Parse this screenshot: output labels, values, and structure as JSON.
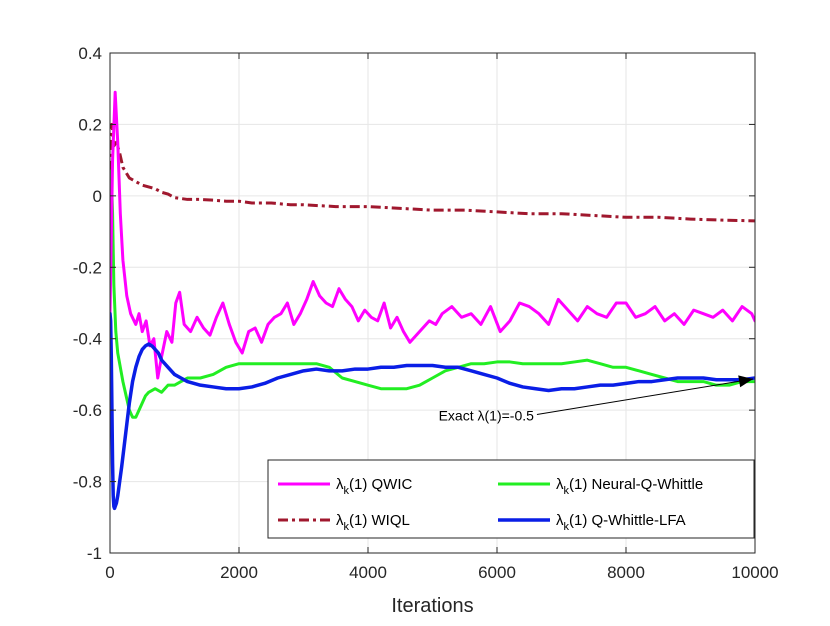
{
  "chart_data": {
    "type": "line",
    "title": "",
    "xlabel": "Iterations",
    "ylabel": "",
    "xlim": [
      0,
      10000
    ],
    "ylim": [
      -1,
      0.4
    ],
    "xticks": [
      0,
      2000,
      4000,
      6000,
      8000,
      10000
    ],
    "xtick_labels": [
      "0",
      "2000",
      "4000",
      "6000",
      "8000",
      "10000"
    ],
    "yticks": [
      -1,
      -0.8,
      -0.6,
      -0.4,
      -0.2,
      0,
      0.2,
      0.4
    ],
    "ytick_labels": [
      "-1",
      "-0.8",
      "-0.6",
      "-0.4",
      "-0.2",
      "0",
      "0.2",
      "0.4"
    ],
    "grid": true,
    "legend_position": "bottom-right",
    "series": [
      {
        "name": "QWIC",
        "legend_sub": "k",
        "color": "#ff00ff",
        "style": "solid",
        "x": [
          0,
          40,
          80,
          120,
          160,
          200,
          260,
          320,
          400,
          450,
          500,
          560,
          620,
          680,
          740,
          800,
          880,
          960,
          1020,
          1080,
          1150,
          1250,
          1350,
          1450,
          1550,
          1650,
          1750,
          1850,
          1950,
          2050,
          2150,
          2250,
          2350,
          2450,
          2550,
          2650,
          2750,
          2850,
          2950,
          3050,
          3150,
          3250,
          3350,
          3450,
          3550,
          3650,
          3750,
          3850,
          3950,
          4050,
          4150,
          4250,
          4350,
          4450,
          4550,
          4650,
          4750,
          4850,
          4950,
          5050,
          5150,
          5300,
          5450,
          5600,
          5750,
          5900,
          6050,
          6200,
          6350,
          6500,
          6650,
          6800,
          6950,
          7100,
          7250,
          7400,
          7550,
          7700,
          7850,
          8000,
          8150,
          8300,
          8450,
          8600,
          8750,
          8900,
          9050,
          9200,
          9350,
          9500,
          9650,
          9800,
          9950,
          10000
        ],
        "y": [
          -0.33,
          0.1,
          0.29,
          0.15,
          -0.05,
          -0.18,
          -0.28,
          -0.33,
          -0.36,
          -0.33,
          -0.38,
          -0.35,
          -0.42,
          -0.4,
          -0.51,
          -0.45,
          -0.38,
          -0.41,
          -0.3,
          -0.27,
          -0.36,
          -0.38,
          -0.34,
          -0.37,
          -0.39,
          -0.34,
          -0.3,
          -0.36,
          -0.41,
          -0.44,
          -0.38,
          -0.37,
          -0.41,
          -0.36,
          -0.34,
          -0.33,
          -0.3,
          -0.36,
          -0.33,
          -0.29,
          -0.24,
          -0.28,
          -0.3,
          -0.31,
          -0.26,
          -0.29,
          -0.31,
          -0.35,
          -0.32,
          -0.34,
          -0.35,
          -0.3,
          -0.37,
          -0.34,
          -0.38,
          -0.41,
          -0.39,
          -0.37,
          -0.35,
          -0.36,
          -0.33,
          -0.31,
          -0.34,
          -0.33,
          -0.36,
          -0.31,
          -0.38,
          -0.35,
          -0.3,
          -0.31,
          -0.33,
          -0.36,
          -0.29,
          -0.32,
          -0.35,
          -0.31,
          -0.33,
          -0.34,
          -0.3,
          -0.3,
          -0.34,
          -0.33,
          -0.31,
          -0.35,
          -0.33,
          -0.36,
          -0.32,
          -0.33,
          -0.34,
          -0.32,
          -0.35,
          -0.31,
          -0.33,
          -0.35
        ]
      },
      {
        "name": "Neural-Q-Whittle",
        "legend_sub": "k",
        "color": "#22ee22",
        "style": "solid",
        "x": [
          0,
          20,
          40,
          60,
          90,
          120,
          160,
          200,
          250,
          300,
          350,
          400,
          450,
          500,
          550,
          600,
          700,
          800,
          900,
          1000,
          1100,
          1200,
          1400,
          1600,
          1800,
          2000,
          2200,
          2400,
          2600,
          2800,
          3000,
          3200,
          3400,
          3600,
          3800,
          4000,
          4200,
          4400,
          4600,
          4800,
          5000,
          5200,
          5400,
          5600,
          5800,
          6000,
          6200,
          6400,
          6600,
          6800,
          7000,
          7200,
          7400,
          7600,
          7800,
          8000,
          8200,
          8400,
          8600,
          8800,
          9000,
          9200,
          9400,
          9600,
          9800,
          10000
        ],
        "y": [
          0.07,
          0.06,
          -0.05,
          -0.25,
          -0.38,
          -0.44,
          -0.48,
          -0.52,
          -0.56,
          -0.6,
          -0.62,
          -0.62,
          -0.6,
          -0.58,
          -0.56,
          -0.55,
          -0.54,
          -0.55,
          -0.53,
          -0.53,
          -0.52,
          -0.51,
          -0.51,
          -0.5,
          -0.48,
          -0.47,
          -0.47,
          -0.47,
          -0.47,
          -0.47,
          -0.47,
          -0.47,
          -0.48,
          -0.51,
          -0.52,
          -0.53,
          -0.54,
          -0.54,
          -0.54,
          -0.53,
          -0.51,
          -0.49,
          -0.48,
          -0.47,
          -0.47,
          -0.465,
          -0.465,
          -0.47,
          -0.47,
          -0.47,
          -0.47,
          -0.465,
          -0.46,
          -0.47,
          -0.48,
          -0.48,
          -0.49,
          -0.5,
          -0.51,
          -0.52,
          -0.52,
          -0.52,
          -0.53,
          -0.53,
          -0.52,
          -0.52
        ]
      },
      {
        "name": "WIQL",
        "legend_sub": "k",
        "color": "#a0182e",
        "style": "dashdot",
        "x": [
          0,
          30,
          60,
          100,
          150,
          200,
          300,
          400,
          500,
          600,
          700,
          800,
          900,
          1000,
          1200,
          1400,
          1600,
          1800,
          2000,
          2200,
          2500,
          2800,
          3000,
          3500,
          4000,
          4500,
          5000,
          5500,
          6000,
          6500,
          7000,
          7500,
          8000,
          8500,
          9000,
          9500,
          10000
        ],
        "y": [
          0.07,
          0.2,
          0.14,
          0.15,
          0.12,
          0.08,
          0.05,
          0.04,
          0.03,
          0.025,
          0.02,
          0.01,
          0.005,
          -0.005,
          -0.01,
          -0.01,
          -0.012,
          -0.015,
          -0.015,
          -0.02,
          -0.02,
          -0.025,
          -0.025,
          -0.03,
          -0.03,
          -0.035,
          -0.04,
          -0.04,
          -0.045,
          -0.05,
          -0.05,
          -0.055,
          -0.06,
          -0.06,
          -0.065,
          -0.068,
          -0.07
        ]
      },
      {
        "name": "Q-Whittle-LFA",
        "legend_sub": "k",
        "color": "#0a1ee6",
        "style": "solid",
        "x": [
          0,
          10,
          20,
          30,
          40,
          50,
          60,
          70,
          80,
          100,
          120,
          150,
          180,
          220,
          260,
          300,
          350,
          400,
          450,
          500,
          550,
          600,
          650,
          700,
          750,
          800,
          900,
          1000,
          1100,
          1200,
          1400,
          1600,
          1800,
          2000,
          2200,
          2400,
          2600,
          2800,
          3000,
          3200,
          3400,
          3600,
          3800,
          4000,
          4200,
          4400,
          4600,
          4800,
          5000,
          5200,
          5400,
          5600,
          5800,
          6000,
          6200,
          6400,
          6600,
          6800,
          7000,
          7200,
          7400,
          7600,
          7800,
          8000,
          8200,
          8400,
          8600,
          8800,
          9000,
          9200,
          9400,
          9600,
          9800,
          10000
        ],
        "y": [
          -0.33,
          -0.35,
          -0.45,
          -0.6,
          -0.75,
          -0.84,
          -0.87,
          -0.875,
          -0.87,
          -0.86,
          -0.84,
          -0.8,
          -0.76,
          -0.7,
          -0.64,
          -0.58,
          -0.52,
          -0.48,
          -0.45,
          -0.43,
          -0.42,
          -0.415,
          -0.42,
          -0.43,
          -0.44,
          -0.46,
          -0.48,
          -0.5,
          -0.51,
          -0.52,
          -0.53,
          -0.535,
          -0.54,
          -0.54,
          -0.535,
          -0.525,
          -0.51,
          -0.5,
          -0.49,
          -0.485,
          -0.49,
          -0.49,
          -0.485,
          -0.485,
          -0.48,
          -0.48,
          -0.475,
          -0.475,
          -0.475,
          -0.48,
          -0.48,
          -0.49,
          -0.5,
          -0.51,
          -0.525,
          -0.535,
          -0.54,
          -0.545,
          -0.54,
          -0.54,
          -0.535,
          -0.53,
          -0.53,
          -0.525,
          -0.52,
          -0.52,
          -0.515,
          -0.51,
          -0.51,
          -0.51,
          -0.515,
          -0.515,
          -0.515,
          -0.51
        ]
      }
    ],
    "legend": [
      {
        "prefix": "λ",
        "sub": "k",
        "suffix": "(1) QWIC",
        "series": 0
      },
      {
        "prefix": "λ",
        "sub": "k",
        "suffix": "(1) Neural-Q-Whittle",
        "series": 1
      },
      {
        "prefix": "λ",
        "sub": "k",
        "suffix": "(1) WIQL",
        "series": 2
      },
      {
        "prefix": "λ",
        "sub": "k",
        "suffix": "(1) Q-Whittle-LFA",
        "series": 3
      }
    ],
    "annotations": [
      {
        "text": "Exact λ(1)=-0.5",
        "arrow_to_x": 10000,
        "arrow_to_y": -0.51,
        "text_x": 6650,
        "text_y": -0.615
      }
    ]
  }
}
